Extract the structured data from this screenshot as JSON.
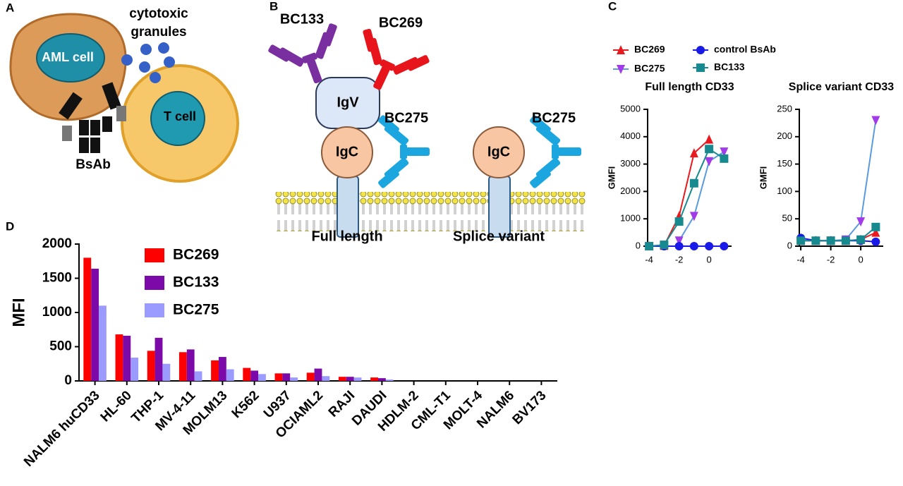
{
  "panel_labels": [
    "A",
    "B",
    "C",
    "D"
  ],
  "diagram_a": {
    "granules_label": [
      "cytotoxic",
      "granules"
    ],
    "aml_cell": "AML cell",
    "t_cell": "T cell",
    "bsab": "BsAb"
  },
  "diagram_b": {
    "antibodies": [
      "BC133",
      "BC269",
      "BC275",
      "BC275"
    ],
    "igv": "IgV",
    "igc": [
      "IgC",
      "IgC"
    ],
    "captions": [
      "Full length",
      "Splice variant"
    ]
  },
  "chart_data": [
    {
      "type": "line",
      "title": "Full length CD33",
      "y_label": "GMFI",
      "x": [
        -4,
        -3,
        -2,
        -1,
        0,
        1
      ],
      "xlim": [
        -4.1,
        1.5
      ],
      "xticks": [
        -4,
        -2,
        0
      ],
      "ylim": [
        0,
        5000
      ],
      "yticks": [
        0,
        1000,
        2000,
        3000,
        4000,
        5000
      ],
      "legend": true,
      "series": [
        {
          "name": "BC269",
          "color": "#e8191f",
          "marker": "triangle-up",
          "values": [
            0,
            20,
            1100,
            3400,
            3900,
            null
          ]
        },
        {
          "name": "BC275",
          "color": "#a13ae8",
          "line_color": "#5a9be0",
          "marker": "triangle-down",
          "values": [
            null,
            null,
            200,
            1100,
            3100,
            3450
          ]
        },
        {
          "name": "control BsAb",
          "color": "#1a1ae8",
          "marker": "circle",
          "values": [
            0,
            0,
            0,
            0,
            0,
            0
          ]
        },
        {
          "name": "BC133",
          "color": "#168a8e",
          "marker": "square",
          "values": [
            0,
            50,
            900,
            2300,
            3550,
            3200
          ]
        }
      ]
    },
    {
      "type": "line",
      "title": "Splice variant CD33",
      "y_label": "GMFI",
      "x": [
        -4,
        -3,
        -2,
        -1,
        0,
        1
      ],
      "xlim": [
        -4.1,
        1.5
      ],
      "xticks": [
        -4,
        -2,
        0
      ],
      "ylim": [
        0,
        250
      ],
      "yticks": [
        0,
        50,
        100,
        150,
        200,
        250
      ],
      "series": [
        {
          "color": "#e8191f",
          "marker": "triangle-up",
          "values": [
            10,
            10,
            10,
            10,
            12,
            25
          ]
        },
        {
          "color": "#a13ae8",
          "line_color": "#5a9be0",
          "marker": "triangle-down",
          "values": [
            null,
            null,
            10,
            12,
            45,
            230
          ]
        },
        {
          "color": "#1a1ae8",
          "marker": "circle",
          "values": [
            15,
            10,
            10,
            10,
            10,
            8
          ]
        },
        {
          "color": "#168a8e",
          "marker": "square",
          "values": [
            10,
            10,
            10,
            10,
            12,
            35
          ]
        }
      ]
    },
    {
      "type": "bar",
      "y_label": "MFI",
      "categories": [
        "NALM6 huCD33",
        "HL-60",
        "THP-1",
        "MV-4-11",
        "MOLM13",
        "K562",
        "U937",
        "OCIAML2",
        "RAJI",
        "DAUDI",
        "HDLM-2",
        "CML-T1",
        "MOLT-4",
        "NALM6",
        "BV173"
      ],
      "ylim": [
        0,
        2000
      ],
      "yticks": [
        0,
        500,
        1000,
        1500,
        2000
      ],
      "legend": true,
      "series": [
        {
          "name": "BC269",
          "color": "#ff0000",
          "values": [
            1800,
            680,
            440,
            420,
            300,
            190,
            110,
            120,
            60,
            50,
            0,
            0,
            0,
            0,
            0
          ]
        },
        {
          "name": "BC133",
          "color": "#7b0aa8",
          "values": [
            1640,
            660,
            630,
            460,
            350,
            150,
            110,
            180,
            60,
            40,
            0,
            0,
            0,
            0,
            0
          ]
        },
        {
          "name": "BC275",
          "color": "#9b9bff",
          "values": [
            1100,
            340,
            250,
            140,
            170,
            100,
            50,
            70,
            50,
            20,
            0,
            0,
            0,
            0,
            0
          ]
        }
      ]
    }
  ]
}
